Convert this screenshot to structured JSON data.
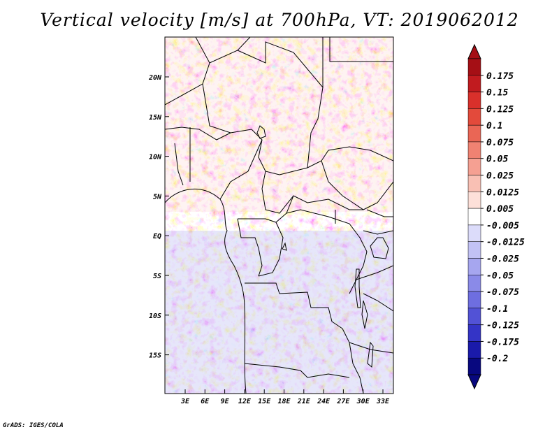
{
  "title": "Vertical velocity [m/s] at 700hPa, VT: 2019062012",
  "footer": "GrADS: IGES/COLA",
  "lon_labels": [
    "3E",
    "6E",
    "9E",
    "12E",
    "15E",
    "18E",
    "21E",
    "24E",
    "27E",
    "30E",
    "33E"
  ],
  "lat_labels": [
    "20N",
    "15N",
    "10N",
    "5N",
    "EQ",
    "5S",
    "10S",
    "15S"
  ],
  "colorbar": {
    "labels": [
      "0.175",
      "0.15",
      "0.125",
      "0.1",
      "0.075",
      "0.05",
      "0.025",
      "0.0125",
      "0.005",
      "-0.005",
      "-0.0125",
      "-0.025",
      "-0.05",
      "-0.075",
      "-0.1",
      "-0.125",
      "-0.175",
      "-0.2"
    ],
    "colors": [
      "#a50f15",
      "#c11b1f",
      "#d9302b",
      "#e34a3b",
      "#ea6655",
      "#f08272",
      "#f5a092",
      "#f9c0b4",
      "#fde0d9",
      "#ffffff",
      "#dcdcfa",
      "#c2c2f5",
      "#a6a6ef",
      "#8a8ae8",
      "#6e6ee0",
      "#5252d6",
      "#3434c6",
      "#1a1aaa",
      "#08087f"
    ],
    "top_arrow_color": "#a50f15",
    "bottom_arrow_color": "#08087f"
  }
}
